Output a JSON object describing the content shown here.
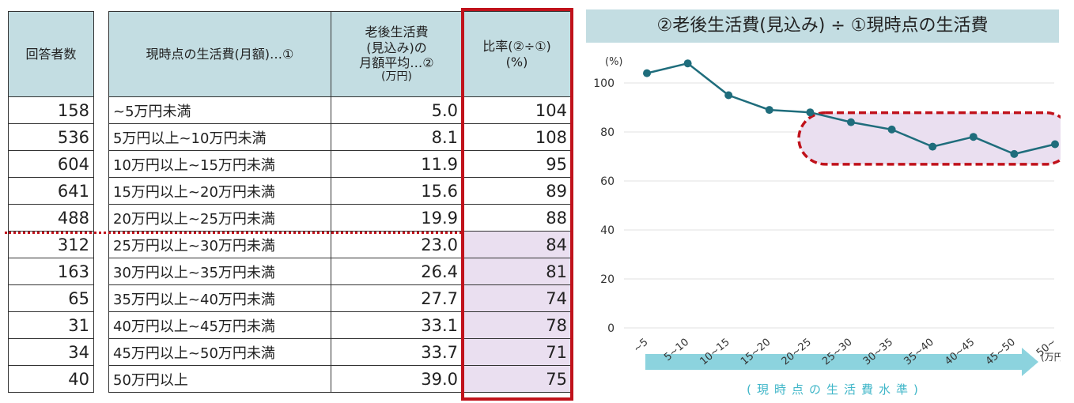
{
  "count_table": {
    "header": "回答者数",
    "counts": [
      "158",
      "536",
      "604",
      "641",
      "488",
      "312",
      "163",
      "65",
      "31",
      "34",
      "40"
    ]
  },
  "main_table": {
    "headers": {
      "living_cost": "現時点の生活費(月額)…①",
      "retire_cost_lines": [
        "老後生活費",
        "(見込み)の",
        "月額平均…②",
        "(万円)"
      ],
      "ratio_lines": [
        "比率(②÷①)",
        "(%)"
      ]
    },
    "rows": [
      {
        "range": "~5万円未満",
        "avg": "5.0",
        "ratio": "104"
      },
      {
        "range": "5万円以上~10万円未満",
        "avg": "8.1",
        "ratio": "108"
      },
      {
        "range": "10万円以上~15万円未満",
        "avg": "11.9",
        "ratio": "95"
      },
      {
        "range": "15万円以上~20万円未満",
        "avg": "15.6",
        "ratio": "89"
      },
      {
        "range": "20万円以上~25万円未満",
        "avg": "19.9",
        "ratio": "88"
      },
      {
        "range": "25万円以上~30万円未満",
        "avg": "23.0",
        "ratio": "84"
      },
      {
        "range": "30万円以上~35万円未満",
        "avg": "26.4",
        "ratio": "81"
      },
      {
        "range": "35万円以上~40万円未満",
        "avg": "27.7",
        "ratio": "74"
      },
      {
        "range": "40万円以上~45万円未満",
        "avg": "33.1",
        "ratio": "78"
      },
      {
        "range": "45万円以上~50万円未満",
        "avg": "33.7",
        "ratio": "71"
      },
      {
        "range": "50万円以上",
        "avg": "39.0",
        "ratio": "75"
      }
    ],
    "highlight_from_row": 5
  },
  "colors": {
    "header_bg": "#c3dde2",
    "highlight_bg": "#eadff0",
    "accent_red": "#c0121b",
    "line": "#1f6d7c",
    "arrow": "#8cd3de",
    "axis_caption": "#3fb6c8"
  },
  "chart_data": {
    "type": "line",
    "title": "②老後生活費(見込み) ÷ ①現時点の生活費",
    "ylabel": "(%)",
    "xunit": "(万円)",
    "xcaption": "(現時点の生活費水準)",
    "categories": [
      "~5",
      "5~10",
      "10~15",
      "15~20",
      "20~25",
      "25~30",
      "30~35",
      "35~40",
      "40~45",
      "45~50",
      "50~"
    ],
    "values": [
      104,
      108,
      95,
      89,
      88,
      84,
      81,
      74,
      78,
      71,
      75
    ],
    "ylim": [
      0,
      100
    ],
    "yticks": [
      0,
      20,
      40,
      60,
      80,
      100
    ],
    "grid": true,
    "highlight_categories": [
      "25~30",
      "30~35",
      "35~40",
      "40~45",
      "45~50",
      "50~"
    ]
  }
}
